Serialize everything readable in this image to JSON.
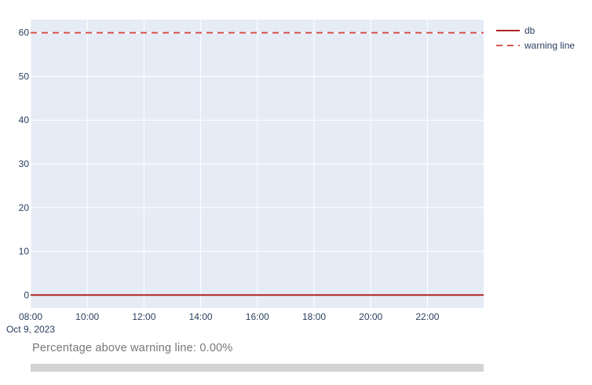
{
  "chart_data": {
    "type": "line",
    "x_axis": {
      "type": "date",
      "range": [
        "2023-10-09 08:00",
        "2023-10-09 23:59"
      ],
      "tick_values": [
        "2023-10-09 08:00",
        "2023-10-09 10:00",
        "2023-10-09 12:00",
        "2023-10-09 14:00",
        "2023-10-09 16:00",
        "2023-10-09 18:00",
        "2023-10-09 20:00",
        "2023-10-09 22:00"
      ],
      "tick_labels": [
        "08:00",
        "10:00",
        "12:00",
        "14:00",
        "16:00",
        "18:00",
        "20:00",
        "22:00"
      ],
      "date_label": "Oct 9, 2023"
    },
    "y_axis": {
      "range": [
        -3,
        63
      ],
      "tick_values": [
        0,
        10,
        20,
        30,
        40,
        50,
        60
      ],
      "tick_labels": [
        "0",
        "10",
        "20",
        "30",
        "40",
        "50",
        "60"
      ]
    },
    "grid": true,
    "legend_position": "top-right",
    "series": [
      {
        "name": "db",
        "color": "#b22222",
        "dash": "solid",
        "x": [
          "2023-10-09 08:00",
          "2023-10-09 23:59"
        ],
        "y": [
          0,
          0
        ]
      },
      {
        "name": "warning line",
        "color": "#d9534f",
        "dash": "dashed",
        "x": [
          "2023-10-09 08:00",
          "2023-10-09 23:59"
        ],
        "y": [
          60,
          60
        ]
      }
    ]
  },
  "percentage_text": "Percentage above warning line: 0.00%",
  "range_slider": {
    "color": "#d3d3d3"
  }
}
